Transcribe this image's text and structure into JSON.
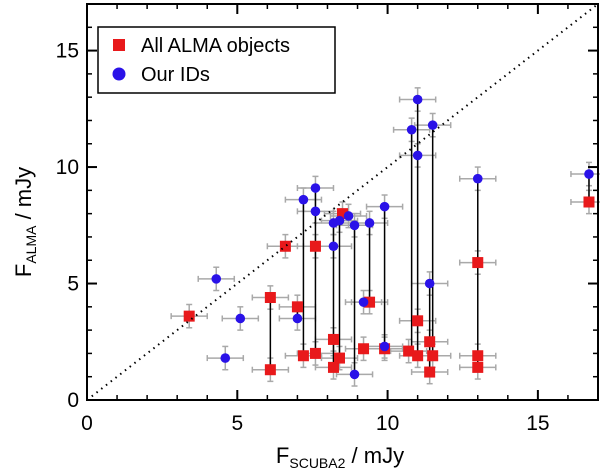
{
  "chart_data": {
    "type": "scatter",
    "xlabel_main": "F",
    "xlabel_sub": "SCUBA2",
    "xlabel_unit": " / mJy",
    "ylabel_main": "F",
    "ylabel_sub": "ALMA",
    "ylabel_unit": " / mJy",
    "xlim": [
      0,
      17
    ],
    "ylim": [
      0,
      17
    ],
    "x_ticks": [
      0,
      5,
      10,
      15
    ],
    "y_ticks": [
      0,
      5,
      10,
      15
    ],
    "x_tick_labels": [
      "0",
      "5",
      "10",
      "15"
    ],
    "y_tick_labels": [
      "0",
      "5",
      "10",
      "15"
    ],
    "grid": false,
    "legend_position": "top-left",
    "one_to_one_line": true,
    "colors": {
      "all_alma": "#e8191b",
      "our_ids": "#2a12e8",
      "errorbar": "#a9a9a9",
      "connector": "#000000",
      "diagonal": "#000000"
    },
    "series": [
      {
        "name": "All ALMA objects",
        "marker": "square",
        "points": [
          {
            "x": 3.4,
            "y": 3.6
          },
          {
            "x": 6.1,
            "y": 4.4
          },
          {
            "x": 6.1,
            "y": 1.3
          },
          {
            "x": 6.6,
            "y": 6.6
          },
          {
            "x": 7.0,
            "y": 4.0
          },
          {
            "x": 7.2,
            "y": 1.9
          },
          {
            "x": 7.6,
            "y": 2.0
          },
          {
            "x": 7.6,
            "y": 6.6
          },
          {
            "x": 8.2,
            "y": 2.6
          },
          {
            "x": 8.2,
            "y": 1.4
          },
          {
            "x": 8.4,
            "y": 1.8
          },
          {
            "x": 8.5,
            "y": 8.0
          },
          {
            "x": 9.2,
            "y": 2.2
          },
          {
            "x": 9.4,
            "y": 4.2
          },
          {
            "x": 9.9,
            "y": 2.2
          },
          {
            "x": 10.7,
            "y": 2.1
          },
          {
            "x": 11.0,
            "y": 3.4
          },
          {
            "x": 11.0,
            "y": 1.9
          },
          {
            "x": 11.4,
            "y": 2.5
          },
          {
            "x": 11.4,
            "y": 1.2
          },
          {
            "x": 11.5,
            "y": 1.9
          },
          {
            "x": 13.0,
            "y": 5.9
          },
          {
            "x": 13.0,
            "y": 1.9
          },
          {
            "x": 13.0,
            "y": 1.4
          },
          {
            "x": 16.7,
            "y": 8.5
          }
        ]
      },
      {
        "name": "Our IDs",
        "marker": "circle",
        "points": [
          {
            "x": 4.3,
            "y": 5.2
          },
          {
            "x": 4.6,
            "y": 1.8
          },
          {
            "x": 5.1,
            "y": 3.5
          },
          {
            "x": 7.0,
            "y": 3.5
          },
          {
            "x": 7.2,
            "y": 8.6
          },
          {
            "x": 7.6,
            "y": 9.1
          },
          {
            "x": 7.6,
            "y": 8.1
          },
          {
            "x": 8.2,
            "y": 7.6
          },
          {
            "x": 8.2,
            "y": 6.6
          },
          {
            "x": 8.4,
            "y": 7.7
          },
          {
            "x": 8.7,
            "y": 7.9
          },
          {
            "x": 8.9,
            "y": 7.5
          },
          {
            "x": 8.9,
            "y": 1.1
          },
          {
            "x": 9.2,
            "y": 4.2
          },
          {
            "x": 9.4,
            "y": 7.6
          },
          {
            "x": 9.9,
            "y": 8.3
          },
          {
            "x": 9.9,
            "y": 2.3
          },
          {
            "x": 10.8,
            "y": 11.6
          },
          {
            "x": 11.0,
            "y": 12.9
          },
          {
            "x": 11.0,
            "y": 10.5
          },
          {
            "x": 11.4,
            "y": 5.0
          },
          {
            "x": 11.5,
            "y": 11.8
          },
          {
            "x": 13.0,
            "y": 9.5
          },
          {
            "x": 16.7,
            "y": 9.7
          }
        ]
      }
    ],
    "connectors": [
      {
        "x": 6.1,
        "y1": 4.4,
        "y2": 1.3
      },
      {
        "x": 7.0,
        "y1": 4.0,
        "y2": 3.5
      },
      {
        "x": 7.2,
        "y1": 8.6,
        "y2": 1.9
      },
      {
        "x": 7.6,
        "y1": 9.1,
        "y2": 2.0
      },
      {
        "x": 8.2,
        "y1": 7.6,
        "y2": 1.4
      },
      {
        "x": 8.4,
        "y1": 7.7,
        "y2": 1.8
      },
      {
        "x": 8.9,
        "y1": 7.5,
        "y2": 1.1
      },
      {
        "x": 9.4,
        "y1": 7.6,
        "y2": 4.2
      },
      {
        "x": 9.9,
        "y1": 8.3,
        "y2": 2.2
      },
      {
        "x": 10.8,
        "y1": 11.6,
        "y2": 2.1
      },
      {
        "x": 11.0,
        "y1": 12.9,
        "y2": 1.9
      },
      {
        "x": 11.4,
        "y1": 5.0,
        "y2": 1.2
      },
      {
        "x": 11.5,
        "y1": 11.8,
        "y2": 1.9
      },
      {
        "x": 13.0,
        "y1": 9.5,
        "y2": 1.4
      },
      {
        "x": 16.7,
        "y1": 9.7,
        "y2": 8.5
      }
    ],
    "x_error": 0.6,
    "y_error": 0.5
  }
}
